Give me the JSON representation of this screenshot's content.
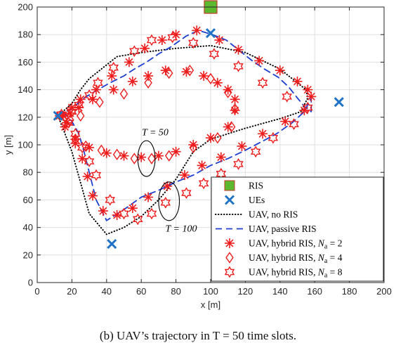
{
  "chart_data": {
    "type": "line",
    "xlabel": "x [m]",
    "ylabel": "y [m]",
    "xlim": [
      0,
      200
    ],
    "ylim": [
      0,
      200
    ],
    "xticks": [
      0,
      20,
      40,
      60,
      80,
      100,
      120,
      140,
      160,
      180,
      200
    ],
    "yticks": [
      0,
      20,
      40,
      60,
      80,
      100,
      120,
      140,
      160,
      180,
      200
    ],
    "grid": true,
    "legend_position": "bottom-right",
    "ris": {
      "name": "RIS",
      "x": 100,
      "y": 200,
      "color": "#5cb82e"
    },
    "ues": {
      "name": "UEs",
      "x": [
        100,
        174,
        12,
        43
      ],
      "y": [
        181,
        131,
        121,
        28
      ],
      "color": "#1f72c6"
    },
    "series": [
      {
        "name": "UAV, no RIS",
        "style": "dotted",
        "color": "#000000",
        "x": [
          12,
          20,
          25,
          30,
          35,
          40,
          44,
          46,
          60,
          80,
          100,
          120,
          140,
          155,
          156,
          152,
          140,
          120,
          100,
          90,
          85,
          80,
          70,
          60,
          50,
          40,
          30,
          20,
          12
        ],
        "y": [
          121,
          130,
          140,
          148,
          153,
          158,
          162,
          164,
          167,
          170,
          172,
          167,
          155,
          140,
          134,
          124,
          119,
          112,
          104,
          95,
          85,
          75,
          60,
          48,
          40,
          35,
          50,
          95,
          121
        ]
      },
      {
        "name": "UAV, passive RIS",
        "style": "dashed",
        "color": "#1f3fd1",
        "x": [
          12,
          20,
          27,
          35,
          42,
          50,
          56,
          63,
          70,
          77,
          86,
          93,
          101,
          109,
          116,
          124,
          131,
          139,
          145,
          150,
          154,
          158,
          158,
          154,
          147,
          138,
          129,
          120,
          110,
          100,
          90,
          80,
          70,
          60,
          50,
          40,
          34,
          30,
          27,
          24,
          20,
          15,
          12
        ],
        "y": [
          121,
          126,
          134,
          140,
          145,
          150,
          155,
          160,
          166,
          171,
          179,
          183,
          180,
          176,
          169,
          161,
          155,
          149,
          142,
          134,
          128,
          124,
          134,
          124,
          116,
          108,
          102,
          96,
          90,
          85,
          78,
          73,
          67,
          62,
          53,
          45,
          60,
          80,
          95,
          108,
          117,
          124,
          121
        ]
      },
      {
        "name": "UAV, hybrid RIS, N_a = 2",
        "style": "markers",
        "marker": "star",
        "color": "#ee1c1c",
        "x": [
          13,
          20,
          25,
          34,
          43,
          53,
          62,
          72,
          80,
          92,
          105,
          116,
          128,
          140,
          150,
          156,
          158,
          154,
          143,
          130,
          118,
          106,
          95,
          85,
          75,
          64,
          55,
          46,
          38,
          32,
          29,
          26,
          22,
          16,
          15,
          19,
          24,
          32,
          44,
          55,
          64,
          74,
          86,
          96,
          104,
          110,
          114,
          114,
          110,
          100,
          90,
          80,
          70,
          60,
          50,
          40,
          30,
          22,
          17
        ],
        "y": [
          121,
          127,
          133,
          140,
          150,
          160,
          170,
          176,
          180,
          183,
          176,
          169,
          161,
          154,
          146,
          140,
          135,
          125,
          117,
          108,
          99,
          91,
          85,
          78,
          70,
          62,
          54,
          49,
          52,
          63,
          77,
          90,
          101,
          113,
          121,
          123,
          127,
          133,
          140,
          146,
          150,
          154,
          153,
          150,
          145,
          140,
          133,
          125,
          113,
          105,
          100,
          95,
          92,
          91,
          92,
          94,
          98,
          104,
          116
        ]
      },
      {
        "name": "UAV, hybrid RIS, N_a = 4",
        "style": "markers",
        "marker": "diamond",
        "color": "#ee1c1c",
        "x": [
          16,
          25,
          36,
          50,
          64,
          76,
          88,
          100,
          110,
          114,
          112,
          104,
          90,
          76,
          66,
          56,
          46,
          37,
          28,
          22,
          19
        ],
        "y": [
          120,
          121,
          131,
          137,
          145,
          152,
          154,
          148,
          138,
          126,
          113,
          105,
          98,
          92,
          90,
          90,
          93,
          96,
          99,
          104,
          118
        ]
      },
      {
        "name": "UAV, hybrid RIS, N_a = 8",
        "style": "markers",
        "marker": "hexagram",
        "color": "#ee1c1c",
        "x": [
          14,
          18,
          22,
          26,
          30,
          34,
          42,
          50,
          58,
          66,
          74,
          86,
          96,
          106,
          116,
          126,
          136,
          148,
          156,
          144,
          130,
          116,
          102,
          90,
          78,
          66,
          56,
          44,
          35,
          30,
          24,
          20
        ],
        "y": [
          122,
          116,
          108,
          98,
          88,
          78,
          60,
          50,
          46,
          50,
          58,
          65,
          72,
          79,
          86,
          95,
          105,
          115,
          127,
          135,
          145,
          157,
          166,
          174,
          178,
          176,
          168,
          156,
          145,
          136,
          129,
          124
        ]
      }
    ],
    "annotations": [
      {
        "text": "T = 50",
        "x": 68,
        "y": 107
      },
      {
        "text": "T = 100",
        "x": 83,
        "y": 37
      }
    ],
    "ellipses": [
      {
        "cx": 63,
        "cy": 90,
        "rx": 5,
        "ry": 13
      },
      {
        "cx": 76,
        "cy": 59,
        "rx": 6,
        "ry": 14
      }
    ],
    "caption": "(b) UAV’s trajectory in T = 50 time slots."
  }
}
